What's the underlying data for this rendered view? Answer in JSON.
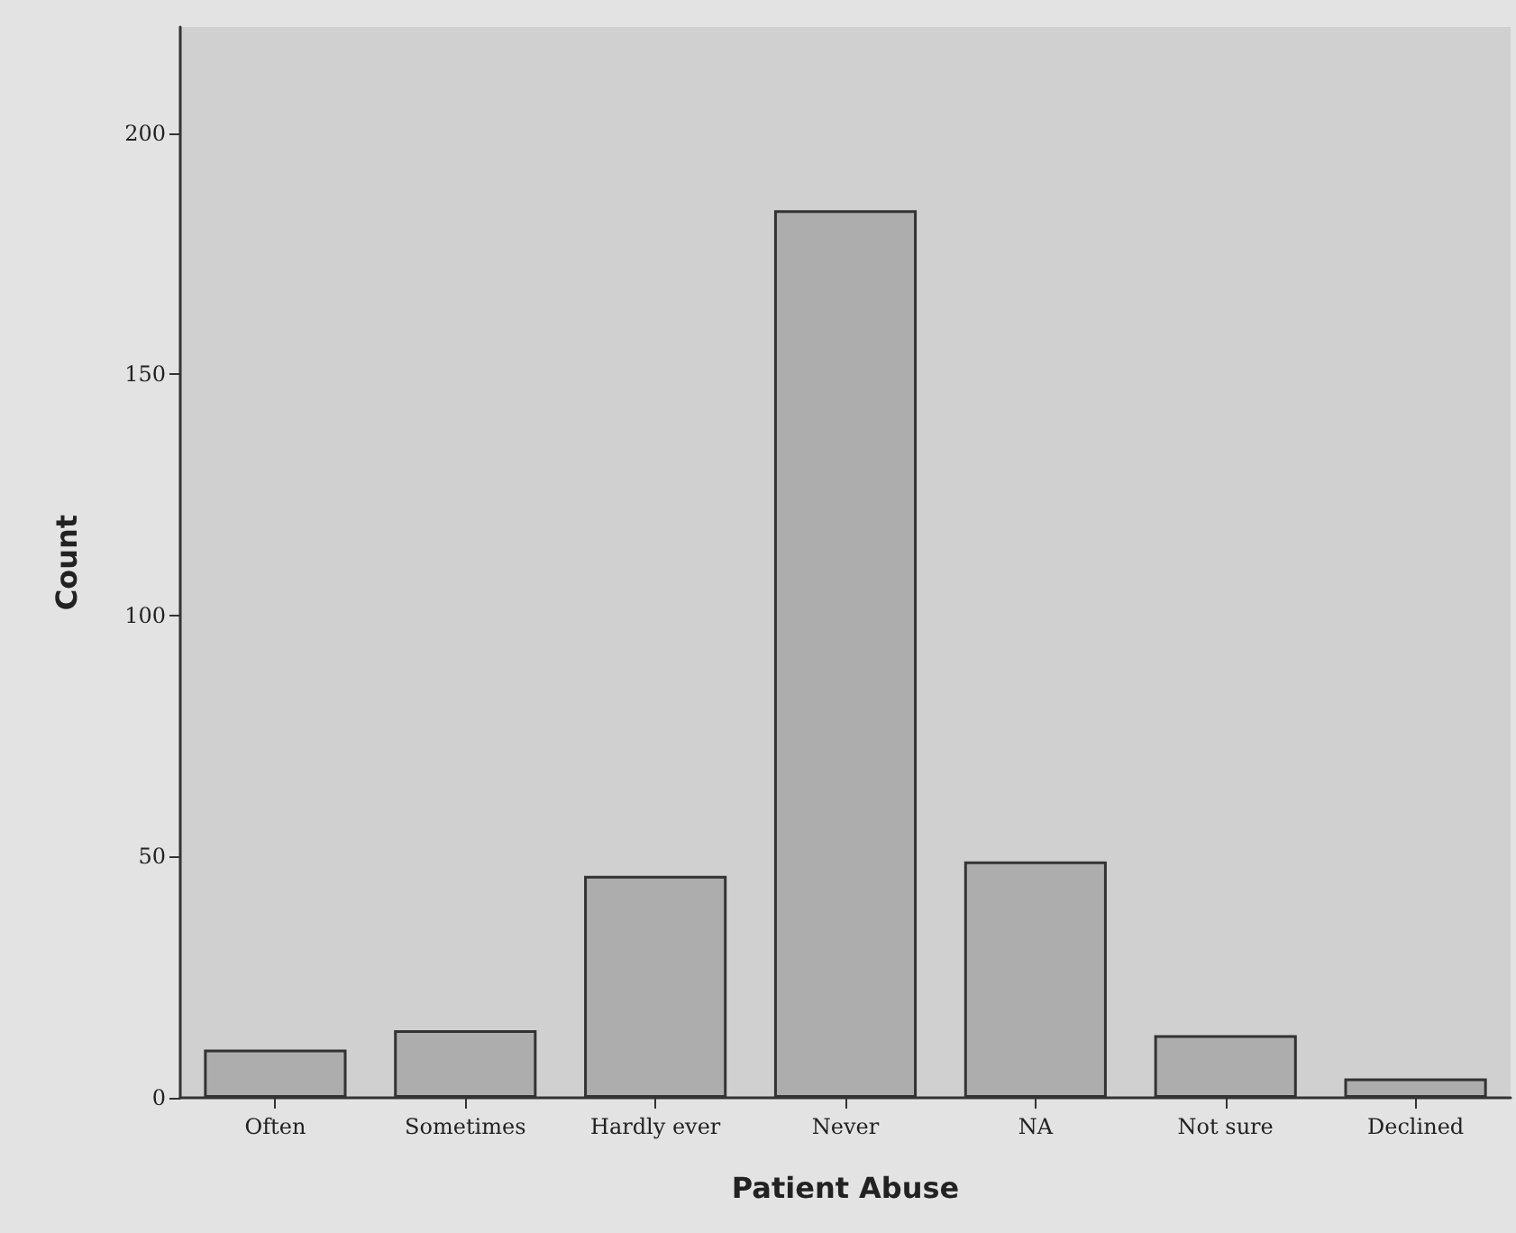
{
  "chart_data": {
    "type": "bar",
    "xlabel": "Patient Abuse",
    "ylabel": "Count",
    "categories": [
      "Often",
      "Sometimes",
      "Hardly ever",
      "Never",
      "NA",
      "Not sure",
      "Declined"
    ],
    "values": [
      10,
      14,
      46,
      184,
      49,
      13,
      4
    ],
    "color": "#adadad",
    "ylim": [
      0,
      222
    ],
    "yticks": [
      0,
      50,
      100,
      150,
      200
    ],
    "grid": false
  }
}
